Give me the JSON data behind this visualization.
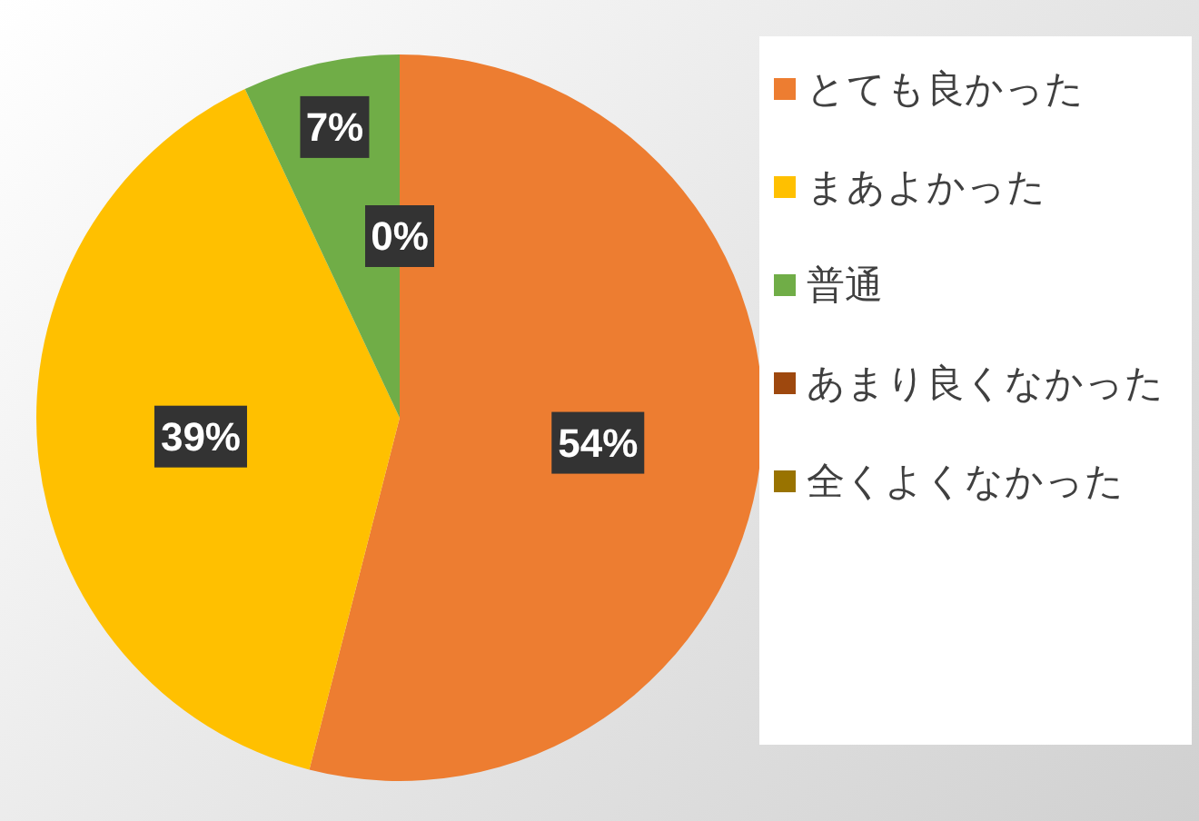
{
  "chart_data": {
    "type": "pie",
    "categories": [
      "とても良かった",
      "まあよかった",
      "普通",
      "あまり良くなかった",
      "全くよくなかった"
    ],
    "values": [
      54,
      39,
      7,
      0,
      0
    ],
    "colors": [
      "#ed7d31",
      "#ffc000",
      "#70ad47",
      "#9e480e",
      "#997300"
    ],
    "value_labels": [
      "54%",
      "39%",
      "7%",
      "0%",
      null
    ],
    "legend": "right"
  }
}
